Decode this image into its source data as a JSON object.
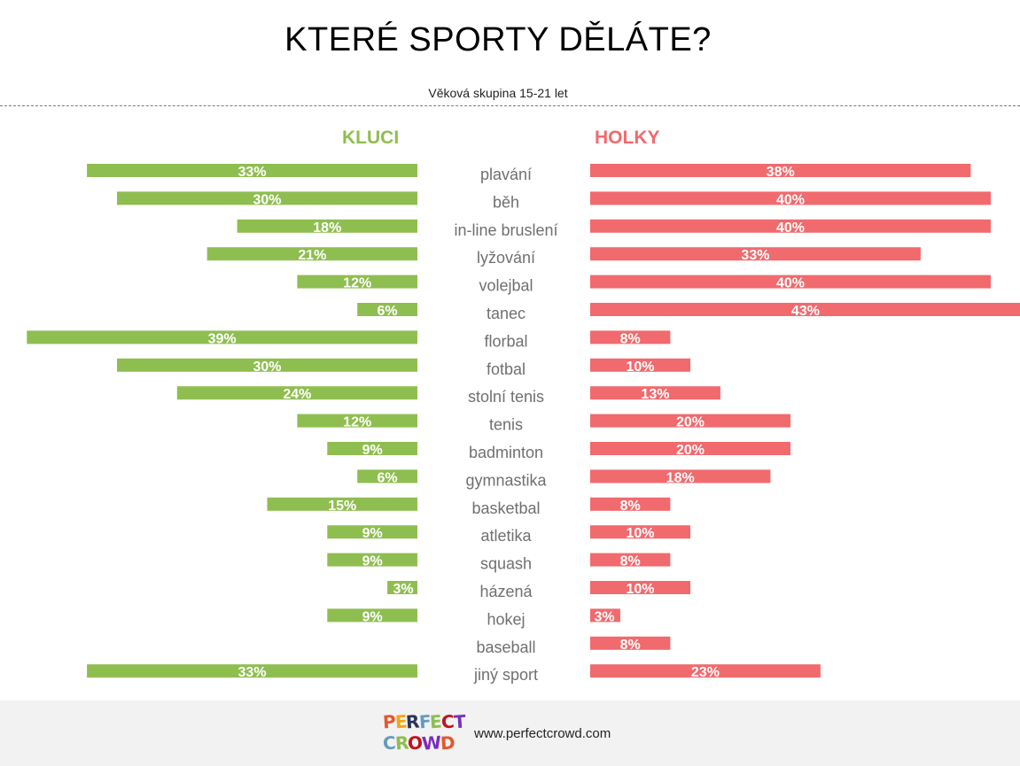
{
  "title": "KTERÉ SPORTY DĚLÁTE?",
  "subtitle": "Věková skupina 15-21 let",
  "colors": {
    "boys": "#8fbe50",
    "girls": "#f06a6e",
    "category_text": "#707070"
  },
  "chart_data": {
    "type": "bar",
    "orientation": "horizontal-butterfly",
    "categories": [
      "plavání",
      "běh",
      "in-line bruslení",
      "lyžování",
      "volejbal",
      "tanec",
      "florbal",
      "fotbal",
      "stolní tenis",
      "tenis",
      "badminton",
      "gymnastika",
      "basketbal",
      "atletika",
      "squash",
      "házená",
      "hokej",
      "baseball",
      "jiný sport"
    ],
    "series": [
      {
        "name": "KLUCI",
        "side": "left",
        "values": [
          33,
          30,
          18,
          21,
          12,
          6,
          39,
          30,
          24,
          12,
          9,
          6,
          15,
          9,
          9,
          3,
          9,
          0,
          33
        ]
      },
      {
        "name": "HOLKY",
        "side": "right",
        "values": [
          38,
          40,
          40,
          33,
          40,
          43,
          8,
          10,
          13,
          20,
          20,
          18,
          8,
          10,
          8,
          10,
          3,
          8,
          23
        ]
      }
    ],
    "value_suffix": "%",
    "legend": "top",
    "grid": false
  },
  "footer": {
    "logo_line1": "PERFECT",
    "logo_line2": "CROWD",
    "website": "www.perfectcrowd.com"
  }
}
